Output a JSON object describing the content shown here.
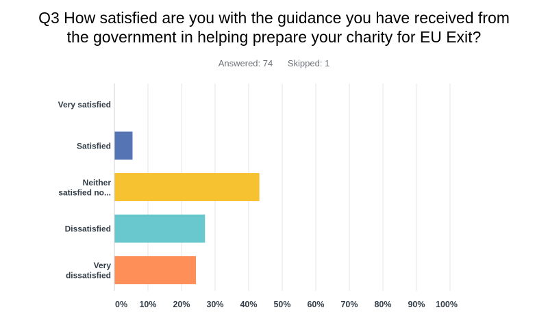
{
  "header": {
    "title_line1": "Q3 How satisfied are you with the guidance you have received from",
    "title_line2": "the government in helping prepare your charity for EU Exit?",
    "answered": "Answered: 74",
    "skipped": "Skipped: 1"
  },
  "chart_data": {
    "type": "bar",
    "orientation": "horizontal",
    "title": "Q3 How satisfied are you with the guidance you have received from the government in helping prepare your charity for EU Exit?",
    "categories": [
      [
        "Very satisfied"
      ],
      [
        "Satisfied"
      ],
      [
        "Neither",
        "satisfied no..."
      ],
      [
        "Dissatisfied"
      ],
      [
        "Very",
        "dissatisfied"
      ]
    ],
    "values": [
      0,
      5.4,
      43.2,
      27.0,
      24.3
    ],
    "colors": [
      "#2b7bba",
      "#5574b4",
      "#f7c232",
      "#68c8cd",
      "#fe8f58"
    ],
    "xlim": [
      0,
      100
    ],
    "xticks": [
      "0%",
      "10%",
      "20%",
      "30%",
      "40%",
      "50%",
      "60%",
      "70%",
      "80%",
      "90%",
      "100%"
    ],
    "grid": true
  }
}
